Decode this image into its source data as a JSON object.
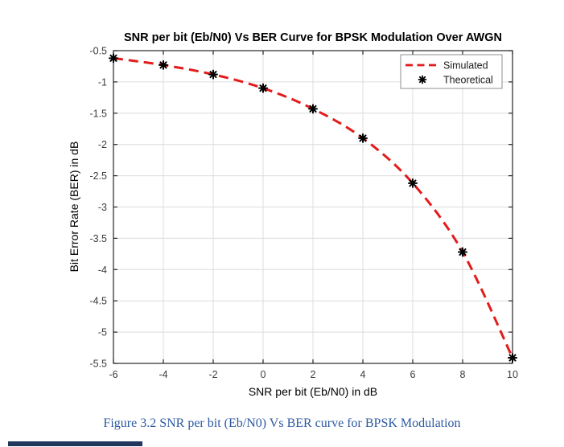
{
  "figure": {
    "caption": "Figure 3.2 SNR per bit (Eb/N0) Vs BER curve for BPSK Modulation",
    "caption_color": "#2c5aa0"
  },
  "chart_data": {
    "type": "line",
    "title": "SNR per bit (Eb/N0) Vs BER Curve for BPSK Modulation Over AWGN",
    "xlabel": "SNR per bit (Eb/N0) in dB",
    "ylabel": "Bit Error Rate (BER) in dB",
    "xlim": [
      -6,
      10
    ],
    "ylim": [
      -5.5,
      -0.5
    ],
    "xticks": [
      -6,
      -4,
      -2,
      0,
      2,
      4,
      6,
      8,
      10
    ],
    "yticks": [
      -0.5,
      -1,
      -1.5,
      -2,
      -2.5,
      -3,
      -3.5,
      -4,
      -4.5,
      -5,
      -5.5
    ],
    "grid": true,
    "x": [
      -6,
      -4,
      -2,
      0,
      2,
      4,
      6,
      8,
      10
    ],
    "series": [
      {
        "name": "Simulated",
        "style": "dashed-line",
        "color": "#e31b1b",
        "values": [
          -0.62,
          -0.73,
          -0.88,
          -1.1,
          -1.43,
          -1.9,
          -2.62,
          -3.72,
          -5.41
        ]
      },
      {
        "name": "Theoretical",
        "style": "asterisk-markers",
        "color": "#000000",
        "values": [
          -0.62,
          -0.73,
          -0.88,
          -1.1,
          -1.43,
          -1.9,
          -2.62,
          -3.72,
          -5.41
        ]
      }
    ],
    "legend": {
      "position": "top-right",
      "entries": [
        "Simulated",
        "Theoretical"
      ]
    }
  },
  "colors": {
    "grid": "#dcdcdc",
    "axis": "#262626",
    "tick_label": "#3b3b3b",
    "legend_border": "#8c8c8c",
    "decoration_bar": "#20365c"
  }
}
